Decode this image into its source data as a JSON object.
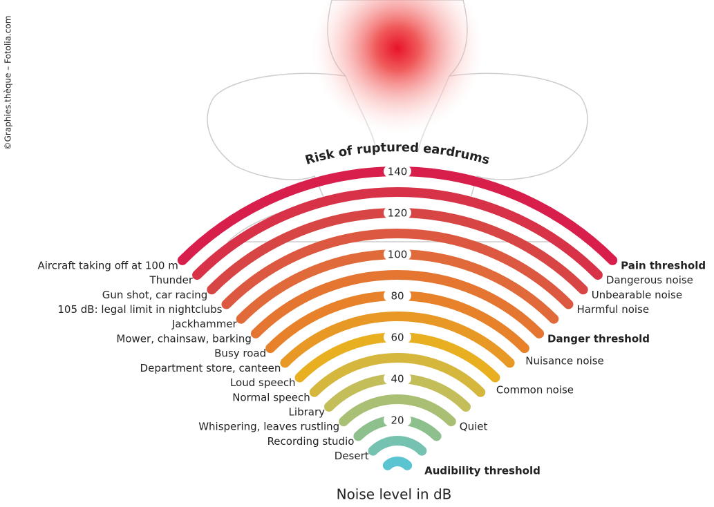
{
  "title": "Risk of ruptured eardrums",
  "axis_label": "Noise level in dB",
  "credit": "©Graphies.thèque – Fotolia.com",
  "scale_labels": [
    140,
    120,
    100,
    80,
    60,
    40,
    20
  ],
  "sources": [
    "Aircraft taking off at 100 m",
    "Thunder",
    "Gun shot, car racing",
    "105 dB: legal limit in nightclubs",
    "Jackhammer",
    "Mower, chainsaw, barking",
    "Busy road",
    "Department store, canteen",
    "Loud speech",
    "Normal speech",
    "Library",
    "Whispering, leaves rustling",
    "Recording studio",
    "Desert"
  ],
  "thresholds": [
    "Pain threshold",
    "Dangerous noise",
    "Unbearable noise",
    "Harmful noise",
    "Danger threshold",
    "Nuisance noise",
    "Common noise",
    "Quiet",
    "Audibility threshold"
  ]
}
